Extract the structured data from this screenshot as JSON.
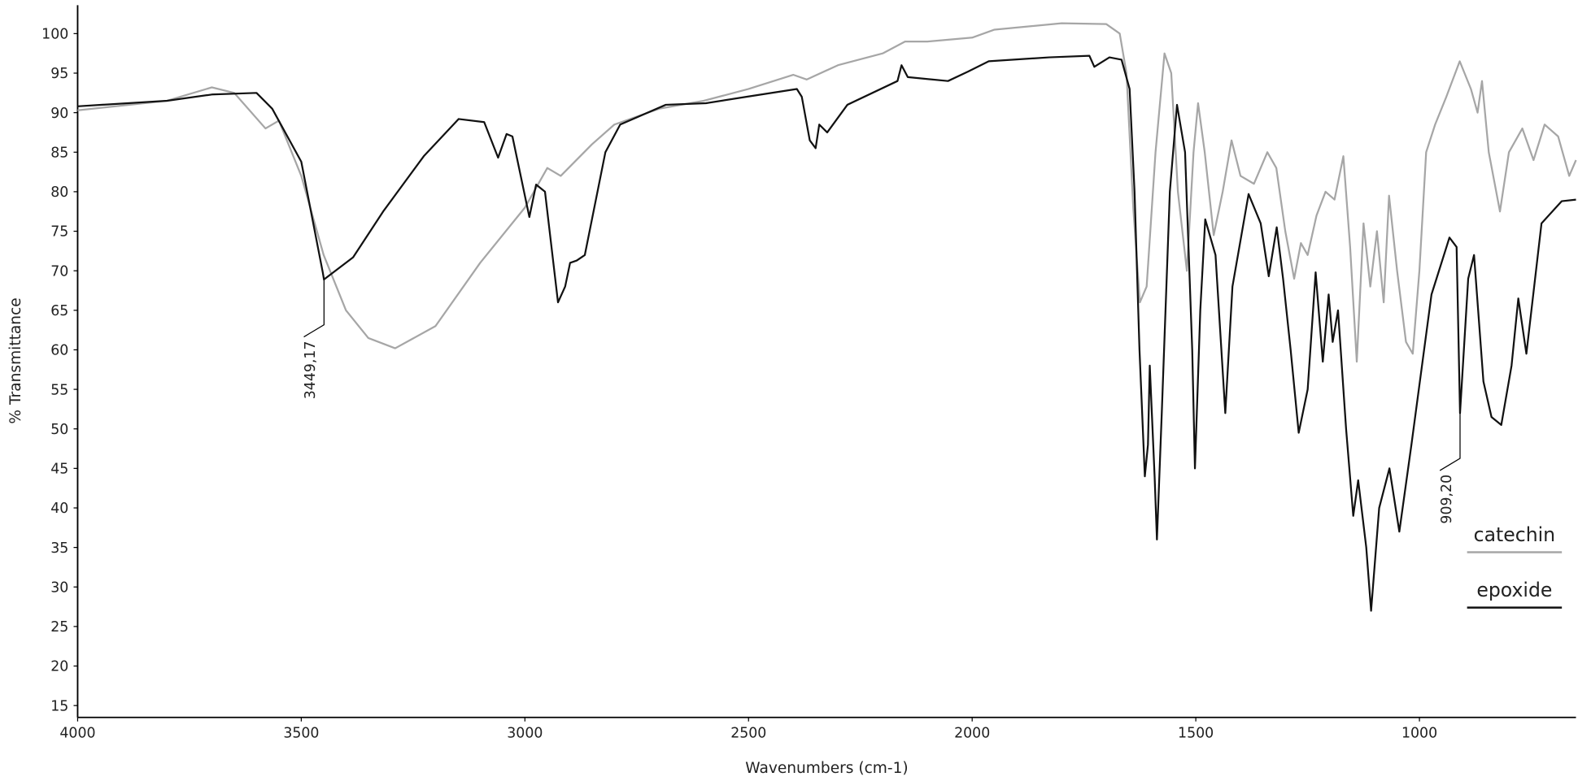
{
  "chart_data": {
    "type": "line",
    "xlabel": "Wavenumbers (cm-1)",
    "ylabel": "% Transmittance",
    "xlim": [
      4000,
      650
    ],
    "ylim": [
      13.5,
      103.6
    ],
    "xticks": [
      4000,
      3500,
      3000,
      2500,
      2000,
      1500,
      1000
    ],
    "yticks": [
      15,
      20,
      25,
      30,
      35,
      40,
      45,
      50,
      55,
      60,
      65,
      70,
      75,
      80,
      85,
      90,
      95,
      100
    ],
    "grid": false,
    "legend": "lower right",
    "series": [
      {
        "name": "catechin",
        "color": "#a6a6a6",
        "x": [
          4000,
          3800,
          3700,
          3650,
          3580,
          3550,
          3500,
          3450,
          3400,
          3350,
          3290,
          3200,
          3100,
          3000,
          2950,
          2920,
          2850,
          2800,
          2700,
          2600,
          2500,
          2400,
          2370,
          2300,
          2200,
          2150,
          2100,
          2000,
          1950,
          1800,
          1700,
          1670,
          1655,
          1640,
          1625,
          1610,
          1590,
          1570,
          1555,
          1540,
          1520,
          1505,
          1495,
          1480,
          1460,
          1440,
          1420,
          1400,
          1370,
          1340,
          1320,
          1300,
          1280,
          1265,
          1250,
          1230,
          1210,
          1190,
          1170,
          1155,
          1140,
          1125,
          1110,
          1095,
          1080,
          1068,
          1050,
          1030,
          1015,
          1000,
          985,
          965,
          940,
          910,
          885,
          870,
          860,
          845,
          820,
          800,
          770,
          745,
          720,
          690,
          665,
          650
        ],
        "values": [
          90.3,
          91.5,
          93.2,
          92.5,
          88,
          89,
          82,
          72,
          65,
          61.5,
          60.2,
          63,
          71,
          78,
          83,
          82,
          86,
          88.5,
          90.5,
          91.5,
          93,
          94.8,
          94.2,
          96,
          97.5,
          99,
          99,
          99.5,
          100.5,
          101.3,
          101.2,
          100,
          95,
          78,
          66,
          68,
          85,
          97.5,
          95,
          80,
          70,
          85,
          91.2,
          85,
          74.5,
          80,
          86.5,
          82,
          81,
          85,
          83,
          75,
          69,
          73.5,
          72,
          77,
          80,
          79,
          84.5,
          73,
          58.5,
          76,
          68,
          75,
          66,
          79.5,
          70,
          61,
          59.5,
          70,
          85,
          88.5,
          92,
          96.5,
          93,
          90,
          94,
          85,
          77.5,
          85,
          88,
          84,
          88.5,
          87,
          82,
          84
        ]
      },
      {
        "name": "epoxide",
        "color": "#111111",
        "x": [
          4000,
          3800,
          3700,
          3600,
          3565,
          3500,
          3452,
          3449.17,
          3384,
          3317,
          3226,
          3148,
          3091,
          3060,
          3041,
          3028,
          2990,
          2975,
          2955,
          2926,
          2910,
          2899,
          2884,
          2866,
          2820,
          2787,
          2685,
          2595,
          2505,
          2392,
          2381,
          2363,
          2350,
          2342,
          2324,
          2279,
          2167,
          2158,
          2144,
          2054,
          2009,
          1963,
          1828,
          1738,
          1727,
          1693,
          1666,
          1648,
          1637,
          1626,
          1614,
          1607,
          1603,
          1592,
          1587,
          1576,
          1558,
          1542,
          1524,
          1508,
          1502,
          1490,
          1479,
          1456,
          1434,
          1418,
          1382,
          1355,
          1337,
          1319,
          1305,
          1288,
          1270,
          1250,
          1232,
          1216,
          1203,
          1194,
          1182,
          1164,
          1148,
          1137,
          1119,
          1108,
          1090,
          1067,
          1045,
          1018,
          973,
          933,
          917,
          909.2,
          891,
          878,
          857,
          839,
          817,
          794,
          779,
          761,
          727,
          682,
          650
        ],
        "values": [
          90.8,
          91.5,
          92.3,
          92.5,
          90.5,
          83.8,
          69.8,
          68.9,
          71.7,
          77.5,
          84.5,
          89.2,
          88.8,
          84.3,
          87.3,
          87,
          76.8,
          80.9,
          80,
          66,
          68,
          71,
          71.3,
          72,
          85,
          88.5,
          91,
          91.2,
          92,
          93,
          92,
          86.5,
          85.5,
          88.5,
          87.5,
          91,
          94,
          96,
          94.5,
          94,
          95.2,
          96.5,
          97,
          97.2,
          95.8,
          97,
          96.7,
          93,
          80,
          60,
          44,
          48,
          58,
          44,
          36,
          52,
          80,
          91,
          85,
          60,
          45,
          65,
          76.5,
          72,
          52,
          68,
          79.7,
          76,
          69.3,
          75.5,
          69,
          60,
          49.5,
          55,
          69.8,
          58.5,
          67,
          61,
          65,
          50,
          39,
          43.5,
          35,
          27,
          40,
          45,
          37,
          48,
          67,
          74.2,
          73,
          52,
          69,
          72,
          56,
          51.5,
          50.5,
          58,
          66.5,
          59.5,
          76,
          78.8,
          79
        ]
      }
    ],
    "annotations": [
      {
        "text": "3449,17",
        "x": 3449.17,
        "y": 68.9
      },
      {
        "text": "909,20",
        "x": 909.2,
        "y": 52
      }
    ]
  }
}
